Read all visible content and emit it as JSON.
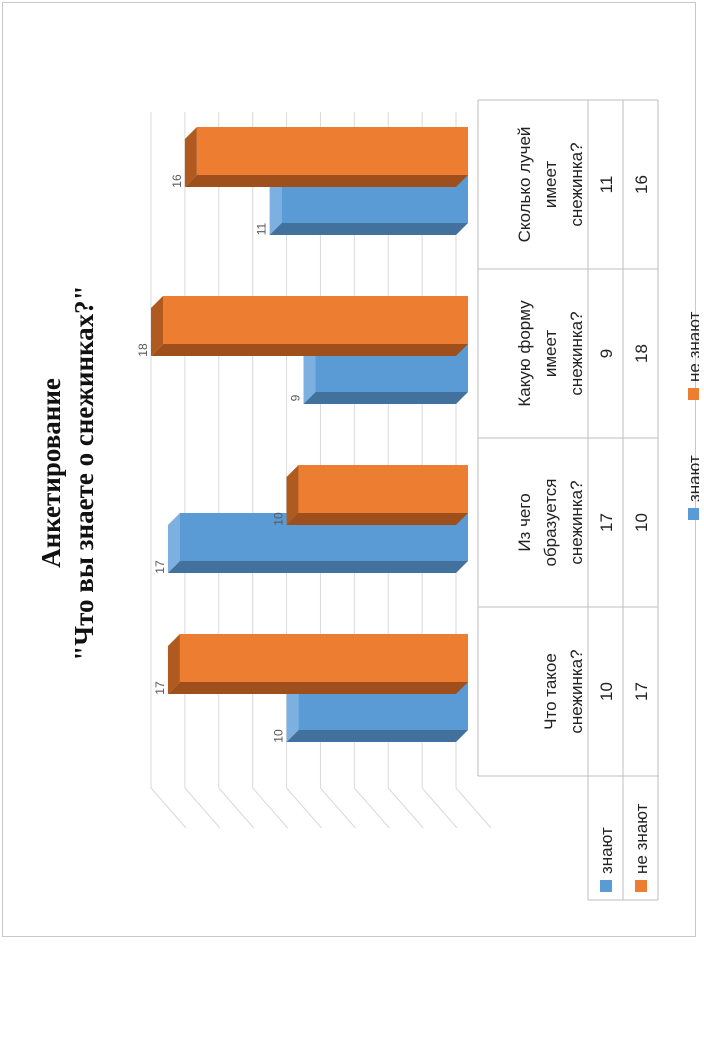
{
  "chart_data": {
    "type": "bar",
    "title": "Анкетирование",
    "subtitle": "\"Что вы знаете о снежинках?\"",
    "categories": [
      [
        "Что такое",
        "снежинка?"
      ],
      [
        "Из чего",
        "образуется",
        "снежинка?"
      ],
      [
        "Какую форму",
        "имеет",
        "снежинка?"
      ],
      [
        "Сколько лучей",
        "имеет",
        "снежинка?"
      ]
    ],
    "series": [
      {
        "name": "знают",
        "values": [
          10,
          17,
          9,
          11
        ],
        "color": "#5B9BD5",
        "top": "#7CB0E0",
        "side": "#41719C"
      },
      {
        "name": "не знают",
        "values": [
          17,
          10,
          18,
          16
        ],
        "color": "#ED7D31",
        "top": "#B05A1F",
        "side": "#9E4F1C"
      }
    ],
    "ylim": [
      0,
      18
    ],
    "grid": true,
    "legend": "bottom",
    "data_table": true,
    "orientation": "rotated 90° counter-clockwise"
  }
}
